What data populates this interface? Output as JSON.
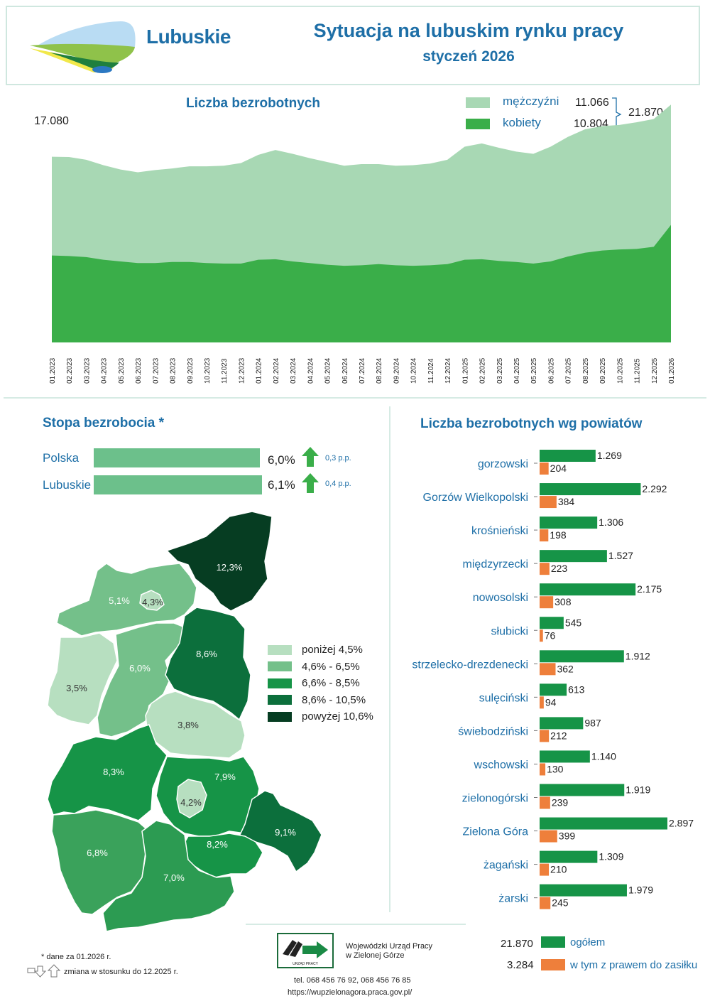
{
  "header": {
    "brand": "Lubuskie",
    "title": "Sytuacja na lubuskim rynku pracy",
    "subtitle": "styczeń 2026"
  },
  "area_chart": {
    "title": "Liczba bezrobotnych",
    "first_total_label": "17.080",
    "legend_men": "mężczyźni",
    "legend_women": "kobiety",
    "men_value": "11.066",
    "women_value": "10.804",
    "total_value": "21.870",
    "color_men": "#a8d8b4",
    "color_women": "#3aae49"
  },
  "rate": {
    "title": "Stopa bezrobocia *",
    "rows": [
      {
        "name": "Polska",
        "value": "6,0%",
        "change": "0,3 p.p."
      },
      {
        "name": "Lubuskie",
        "value": "6,1%",
        "change": "0,4 p.p."
      }
    ],
    "bar_color": "#6cc08b",
    "arrow_color": "#3aae49"
  },
  "map": {
    "legend": [
      {
        "label": "poniżej 4,5%",
        "color": "#b7dfc0"
      },
      {
        "label": "4,6% - 6,5%",
        "color": "#74c08a"
      },
      {
        "label": "6,6% - 8,5%",
        "color": "#169447"
      },
      {
        "label": "8,6% - 10,5%",
        "color": "#0c6f3c"
      },
      {
        "label": "powyżej 10,6%",
        "color": "#063d22"
      }
    ],
    "labels": [
      "12,3%",
      "5,1%",
      "4,3%",
      "6,0%",
      "8,6%",
      "3,5%",
      "3,8%",
      "8,3%",
      "7,9%",
      "4,2%",
      "9,1%",
      "8,2%",
      "6,8%",
      "7,0%"
    ]
  },
  "chart_data": [
    {
      "type": "area",
      "title": "Liczba bezrobotnych",
      "x": [
        "01.2023",
        "02.2023",
        "03.2023",
        "04.2023",
        "05.2023",
        "06.2023",
        "07.2023",
        "08.2023",
        "09.2023",
        "10.2023",
        "11.2023",
        "12.2023",
        "01.2024",
        "02.2024",
        "03.2024",
        "04.2024",
        "05.2024",
        "06.2024",
        "07.2024",
        "08.2024",
        "09.2024",
        "10.2024",
        "11.2024",
        "12.2024",
        "01.2025",
        "02.2025",
        "03.2025",
        "04.2025",
        "05.2025",
        "06.2025",
        "07.2025",
        "08.2025",
        "09.2025",
        "10.2025",
        "11.2025",
        "12.2025",
        "01.2026"
      ],
      "stacked": true,
      "series": [
        {
          "name": "kobiety",
          "values": [
            8000,
            7950,
            7850,
            7600,
            7450,
            7300,
            7300,
            7400,
            7400,
            7300,
            7250,
            7250,
            7600,
            7650,
            7450,
            7300,
            7150,
            7050,
            7100,
            7200,
            7100,
            7050,
            7100,
            7200,
            7600,
            7650,
            7500,
            7400,
            7250,
            7450,
            7900,
            8250,
            8450,
            8550,
            8600,
            8800,
            10804
          ]
        },
        {
          "name": "mężczyźni",
          "values": [
            9080,
            9100,
            8950,
            8700,
            8450,
            8350,
            8550,
            8600,
            8800,
            8900,
            9000,
            9250,
            9650,
            10050,
            9900,
            9650,
            9450,
            9200,
            9300,
            9200,
            9150,
            9250,
            9350,
            9600,
            10400,
            10650,
            10400,
            10150,
            10100,
            10550,
            11000,
            11350,
            11450,
            11450,
            11650,
            11750,
            11066
          ]
        }
      ],
      "ylim": [
        0,
        23000
      ]
    },
    {
      "type": "bar",
      "title": "Liczba bezrobotnych wg powiatów",
      "categories": [
        "gorzowski",
        "Gorzów Wielkopolski",
        "krośnieński",
        "międzyrzecki",
        "nowosolski",
        "słubicki",
        "strzelecko-drezdenecki",
        "sulęciński",
        "świebodziński",
        "wschowski",
        "zielonogórski",
        "Zielona Góra",
        "żagański",
        "żarski"
      ],
      "series": [
        {
          "name": "ogółem",
          "values": [
            1269,
            2292,
            1306,
            1527,
            2175,
            545,
            1912,
            613,
            987,
            1140,
            1919,
            2897,
            1309,
            1979
          ],
          "labels": [
            "1.269",
            "2.292",
            "1.306",
            "1.527",
            "2.175",
            "545",
            "1.912",
            "613",
            "987",
            "1.140",
            "1.919",
            "2.897",
            "1.309",
            "1.979"
          ]
        },
        {
          "name": "w tym z prawem do zasiłku",
          "values": [
            204,
            384,
            198,
            223,
            308,
            76,
            362,
            94,
            212,
            130,
            239,
            399,
            210,
            245
          ],
          "labels": [
            "204",
            "384",
            "198",
            "223",
            "308",
            "76",
            "362",
            "94",
            "212",
            "130",
            "239",
            "399",
            "210",
            "245"
          ]
        }
      ]
    }
  ],
  "powiaty_legend": {
    "total_value": "21.870",
    "total_label": "ogółem",
    "benefit_value": "3.284",
    "benefit_label": "w tym z prawem do zasiłku",
    "color_total": "#169447",
    "color_benefit": "#ee7f3b"
  },
  "footer": {
    "note": "* dane za 01.2026 r.",
    "change_note": "zmiana w stosunku do 12.2025 r.",
    "org_line1": "Wojewódzki Urząd Pracy",
    "org_line2": "w Zielonej Górze",
    "logo_text": "URZĄD PRACY",
    "phone": "tel. 068 456 76 92,  068 456 76 85",
    "url": "https://wupzielonagora.praca.gov.pl/"
  }
}
